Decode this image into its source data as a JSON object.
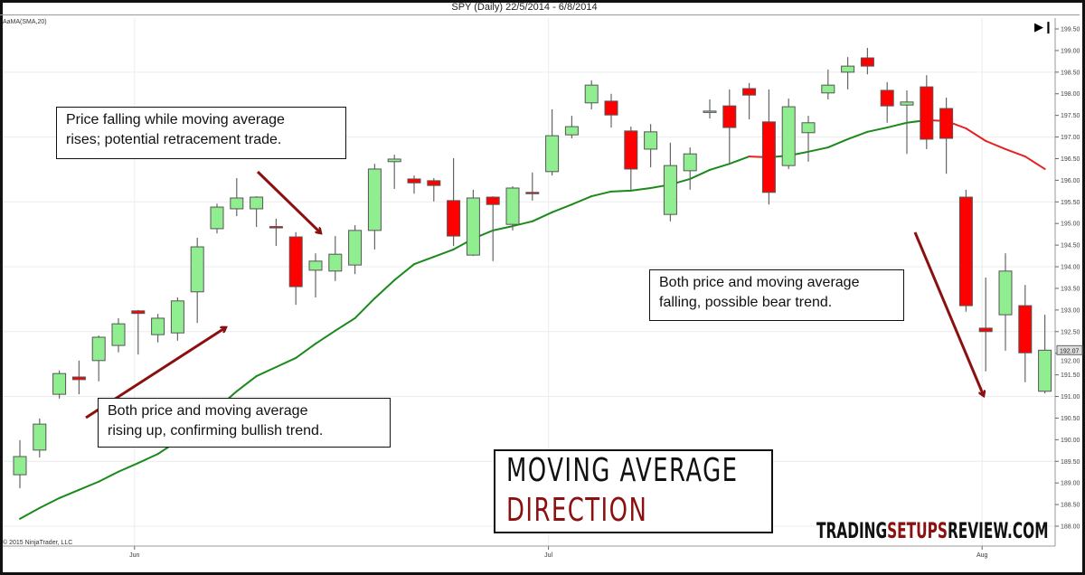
{
  "header": {
    "title": "SPY (Daily)  22/5/2014 - 6/8/2014",
    "indicator_label": "AaMA(SMA,20)",
    "copyright": "© 2015 NinjaTrader, LLC",
    "end_button_icon": "skip-to-end-icon"
  },
  "annotations": {
    "retracement": [
      "Price falling while moving average",
      "rises; potential retracement trade."
    ],
    "bullish": [
      "Both price and moving average",
      "rising up, confirming bullish trend."
    ],
    "bearish": [
      "Both price and moving average",
      "falling, possible bear trend."
    ]
  },
  "banner": {
    "line1": "MOVING AVERAGE",
    "line2": "DIRECTION"
  },
  "logo": {
    "part1": "TRADING",
    "part2": "SETUPS",
    "part3": "REVIEW.COM"
  },
  "colors": {
    "up": "#90ee90",
    "down": "#ff0000",
    "ma_up": "#1a8a1a",
    "ma_down": "#e82020",
    "arrow": "#8b1010",
    "accent": "#8b1010"
  },
  "chart_data": {
    "type": "candlestick",
    "title": "SPY (Daily)  22/5/2014 - 6/8/2014",
    "ylim": [
      188.0,
      199.5
    ],
    "y_ticks": [
      "199.50",
      "199.00",
      "198.50",
      "198.00",
      "197.50",
      "197.00",
      "196.50",
      "196.00",
      "195.50",
      "195.00",
      "194.50",
      "194.00",
      "193.50",
      "193.00",
      "192.50",
      "192.00",
      "191.50",
      "191.00",
      "190.50",
      "190.00",
      "189.50",
      "189.00",
      "188.50",
      "188.00"
    ],
    "x_ticks": [
      {
        "label": "Jun",
        "index": 6
      },
      {
        "label": "Jul",
        "index": 27
      },
      {
        "label": "Aug",
        "index": 49
      }
    ],
    "last_price": "192.07",
    "grid": true,
    "ohlc": [
      [
        189.19,
        189.99,
        188.88,
        189.61
      ],
      [
        189.76,
        190.49,
        189.59,
        190.36
      ],
      [
        191.05,
        191.6,
        190.95,
        191.53
      ],
      [
        191.45,
        191.83,
        191.05,
        191.39
      ],
      [
        191.83,
        192.41,
        191.35,
        192.37
      ],
      [
        192.18,
        192.81,
        192.02,
        192.68
      ],
      [
        192.98,
        193.0,
        191.97,
        192.92
      ],
      [
        192.43,
        192.91,
        192.25,
        192.81
      ],
      [
        192.47,
        193.29,
        192.29,
        193.21
      ],
      [
        193.42,
        194.67,
        192.7,
        194.46
      ],
      [
        194.88,
        195.46,
        194.77,
        195.38
      ],
      [
        195.34,
        196.05,
        195.17,
        195.59
      ],
      [
        195.34,
        195.63,
        194.92,
        195.61
      ],
      [
        194.93,
        195.11,
        194.48,
        194.91
      ],
      [
        194.69,
        194.8,
        193.12,
        193.54
      ],
      [
        193.92,
        194.31,
        193.29,
        194.13
      ],
      [
        193.9,
        194.71,
        193.67,
        194.29
      ],
      [
        194.04,
        194.96,
        193.83,
        194.84
      ],
      [
        194.84,
        196.38,
        194.4,
        196.26
      ],
      [
        196.43,
        196.59,
        195.8,
        196.49
      ],
      [
        196.03,
        196.11,
        195.69,
        195.94
      ],
      [
        195.99,
        196.05,
        195.51,
        195.88
      ],
      [
        195.53,
        196.51,
        194.48,
        194.71
      ],
      [
        194.27,
        195.78,
        194.25,
        195.59
      ],
      [
        195.61,
        195.63,
        194.13,
        195.44
      ],
      [
        194.98,
        195.86,
        194.84,
        195.82
      ],
      [
        195.72,
        196.18,
        195.53,
        195.71
      ],
      [
        196.2,
        197.64,
        196.11,
        197.03
      ],
      [
        197.05,
        197.49,
        196.97,
        197.24
      ],
      [
        197.79,
        198.31,
        197.64,
        198.2
      ],
      [
        197.83,
        198.0,
        197.22,
        197.51
      ],
      [
        197.14,
        197.24,
        195.78,
        196.26
      ],
      [
        196.72,
        197.3,
        196.3,
        197.12
      ],
      [
        195.21,
        196.87,
        195.05,
        196.34
      ],
      [
        196.22,
        196.76,
        195.78,
        196.61
      ],
      [
        197.59,
        197.87,
        197.43,
        197.6
      ],
      [
        197.72,
        198.1,
        196.38,
        197.22
      ],
      [
        198.12,
        198.25,
        197.41,
        197.97
      ],
      [
        197.35,
        198.1,
        195.44,
        195.72
      ],
      [
        196.34,
        197.89,
        196.26,
        197.7
      ],
      [
        197.1,
        197.49,
        196.43,
        197.33
      ],
      [
        198.02,
        198.56,
        197.87,
        198.2
      ],
      [
        198.5,
        198.85,
        198.1,
        198.64
      ],
      [
        198.83,
        199.06,
        198.45,
        198.64
      ],
      [
        198.08,
        198.27,
        197.33,
        197.72
      ],
      [
        197.74,
        198.08,
        196.61,
        197.81
      ],
      [
        198.16,
        198.43,
        196.72,
        196.95
      ],
      [
        197.66,
        197.91,
        196.15,
        196.97
      ],
      [
        195.61,
        195.78,
        192.96,
        193.1
      ],
      [
        192.58,
        193.75,
        191.58,
        192.5
      ],
      [
        192.89,
        194.31,
        192.06,
        193.9
      ],
      [
        193.1,
        193.58,
        191.33,
        192.01
      ],
      [
        191.12,
        192.89,
        191.07,
        192.07
      ]
    ],
    "ma_name": "AaMA(SMA,20)",
    "ma": [
      188.17,
      188.42,
      188.65,
      188.84,
      189.03,
      189.26,
      189.46,
      189.67,
      189.97,
      190.34,
      190.72,
      191.12,
      191.47,
      191.68,
      191.89,
      192.22,
      192.52,
      192.81,
      193.27,
      193.69,
      194.06,
      194.23,
      194.4,
      194.65,
      194.84,
      194.94,
      195.05,
      195.26,
      195.44,
      195.63,
      195.74,
      195.76,
      195.82,
      195.9,
      196.03,
      196.24,
      196.38,
      196.55,
      196.53,
      196.57,
      196.66,
      196.76,
      196.95,
      197.12,
      197.22,
      197.33,
      197.39,
      197.37,
      197.2,
      196.91,
      196.72,
      196.55,
      196.26
    ]
  }
}
